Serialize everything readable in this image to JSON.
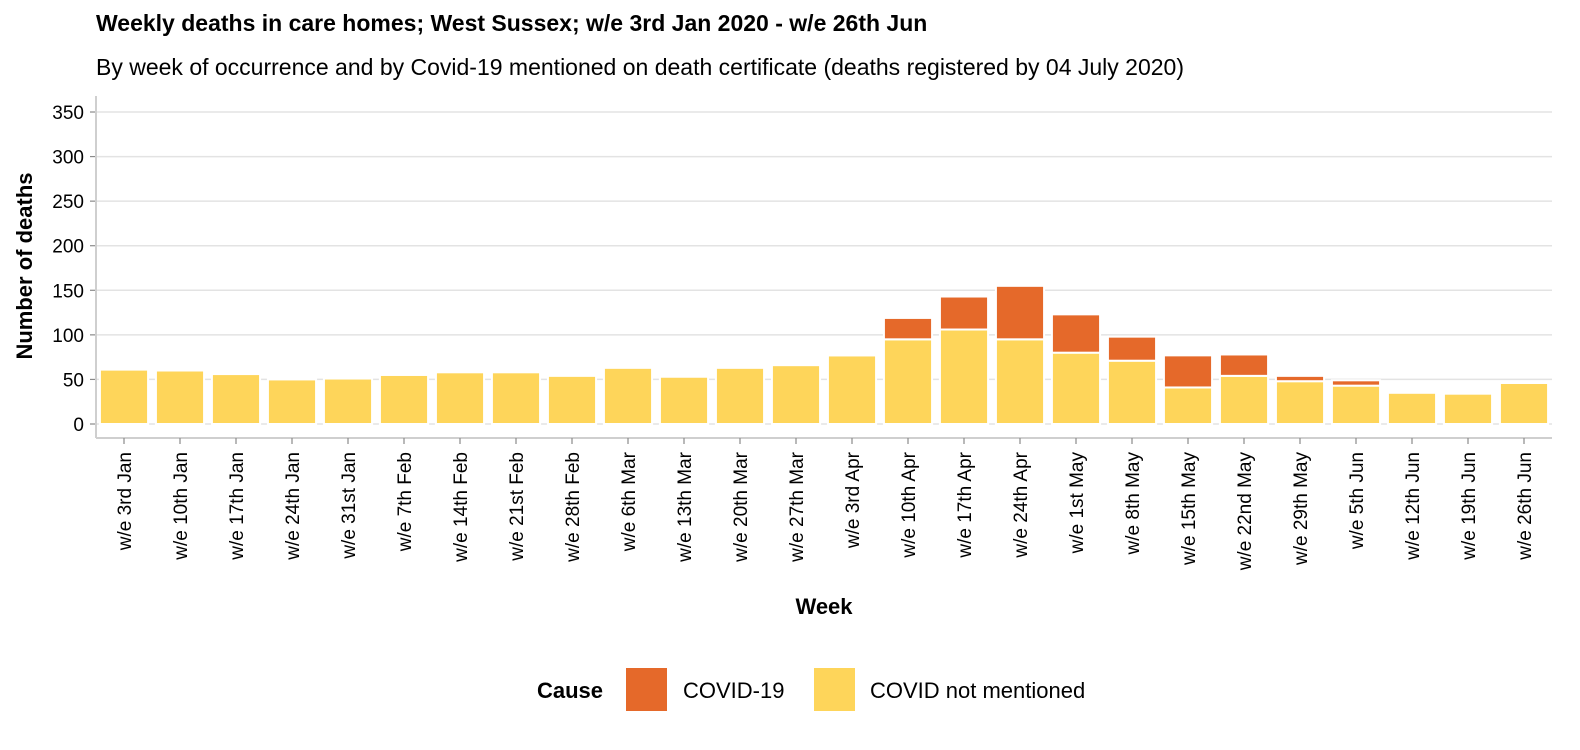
{
  "chart_data": {
    "type": "bar",
    "stacked": true,
    "title": "Weekly deaths in care homes; West Sussex; w/e 3rd Jan 2020 - w/e 26th Jun",
    "subtitle": "By week of occurrence and by Covid-19 mentioned on death certificate (deaths registered by 04 July 2020)",
    "xlabel": "Week",
    "ylabel": "Number of deaths",
    "ylim": [
      0,
      350
    ],
    "yticks": [
      0,
      50,
      100,
      150,
      200,
      250,
      300,
      350
    ],
    "grid": "horizontal",
    "legend_position": "bottom",
    "legend_title": "Cause",
    "categories": [
      "w/e 3rd Jan",
      "w/e 10th Jan",
      "w/e 17th Jan",
      "w/e 24th Jan",
      "w/e 31st Jan",
      "w/e 7th Feb",
      "w/e 14th Feb",
      "w/e 21st Feb",
      "w/e 28th Feb",
      "w/e 6th Mar",
      "w/e 13th Mar",
      "w/e 20th Mar",
      "w/e 27th Mar",
      "w/e 3rd Apr",
      "w/e 10th Apr",
      "w/e 17th Apr",
      "w/e 24th Apr",
      "w/e 1st May",
      "w/e 8th May",
      "w/e 15th May",
      "w/e 22nd May",
      "w/e 29th May",
      "w/e 5th Jun",
      "w/e 12th Jun",
      "w/e 19th Jun",
      "w/e 26th Jun"
    ],
    "series": [
      {
        "name": "COVID not mentioned",
        "color": "#FED55A",
        "values": [
          61,
          60,
          56,
          50,
          51,
          55,
          58,
          58,
          54,
          63,
          53,
          63,
          66,
          77,
          95,
          106,
          95,
          80,
          71,
          41,
          54,
          48,
          43,
          35,
          34,
          46
        ]
      },
      {
        "name": "COVID-19",
        "color": "#E5692A",
        "values": [
          0,
          0,
          0,
          0,
          0,
          0,
          0,
          0,
          0,
          0,
          0,
          0,
          0,
          2,
          24,
          37,
          60,
          43,
          27,
          36,
          24,
          6,
          6,
          0,
          0,
          0
        ]
      }
    ]
  }
}
